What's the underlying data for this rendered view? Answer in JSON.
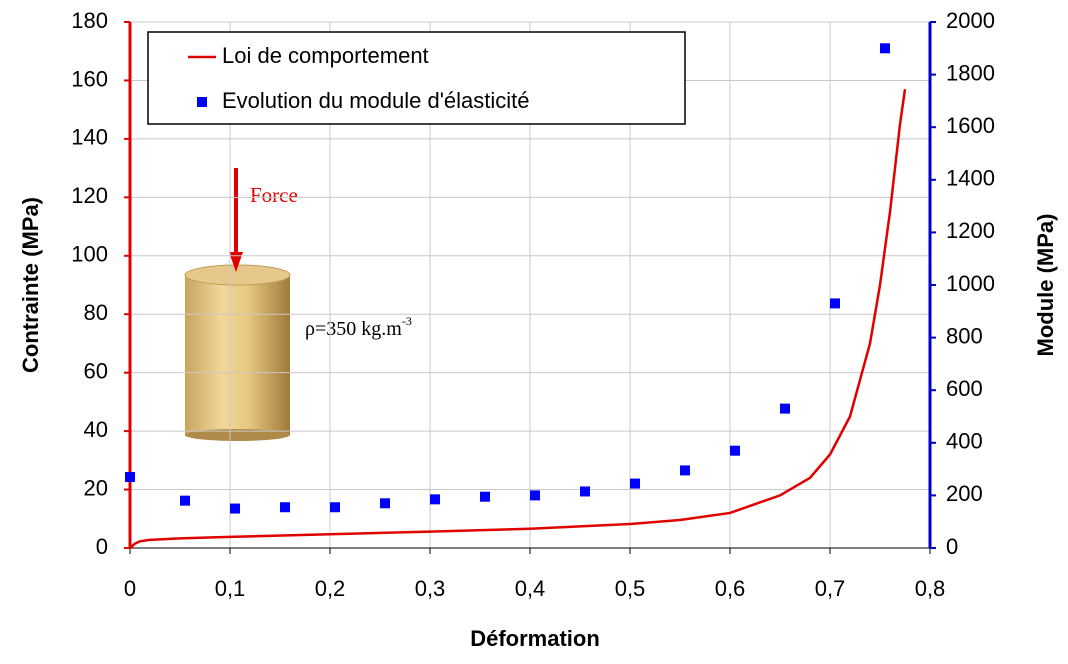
{
  "chart_data": {
    "type": "line",
    "xlabel": "Déformation",
    "ylabel": "Contrainte (MPa)",
    "y2label": "Module (MPa)",
    "annotations": {
      "force": "Force",
      "density": "ρ=350 kg.m",
      "density_exp": "-3"
    },
    "xlim": [
      0,
      0.8
    ],
    "xticks": [
      0,
      {
        "value": 0.1,
        "label": "0,1"
      },
      {
        "value": 0.2,
        "label": "0,2"
      },
      {
        "value": 0.3,
        "label": "0,3"
      },
      {
        "value": 0.4,
        "label": "0,4"
      },
      {
        "value": 0.5,
        "label": "0,5"
      },
      {
        "value": 0.6,
        "label": "0,6"
      },
      {
        "value": 0.7,
        "label": "0,7"
      },
      {
        "value": 0.8,
        "label": "0,8"
      }
    ],
    "ylim": [
      0,
      180
    ],
    "yticks": [
      0,
      20,
      40,
      60,
      80,
      100,
      120,
      140,
      160,
      180
    ],
    "y2lim": [
      0,
      2000
    ],
    "y2ticks": [
      0,
      200,
      400,
      600,
      800,
      1000,
      1200,
      1400,
      1600,
      1800,
      2000
    ],
    "y_axis_color": "#e00000",
    "y2_axis_color": "#0000c8",
    "grid": true,
    "legend": "top-left",
    "series": [
      {
        "name": "Loi de comportement",
        "type": "line",
        "color": "#e00000",
        "x": [
          0,
          0.005,
          0.01,
          0.02,
          0.05,
          0.1,
          0.2,
          0.3,
          0.4,
          0.5,
          0.55,
          0.6,
          0.65,
          0.68,
          0.7,
          0.72,
          0.74,
          0.75,
          0.76,
          0.77,
          0.775
        ],
        "values": [
          0,
          1.5,
          2.3,
          2.8,
          3.3,
          3.8,
          4.7,
          5.6,
          6.6,
          8.2,
          9.6,
          12,
          18,
          24,
          32,
          45,
          70,
          90,
          115,
          145,
          157
        ]
      },
      {
        "name": "Evolution du module d'élasticité",
        "type": "scatter",
        "color": "#0000ff",
        "axis": "y2",
        "x": [
          0,
          0.055,
          0.105,
          0.155,
          0.205,
          0.255,
          0.305,
          0.355,
          0.405,
          0.455,
          0.505,
          0.555,
          0.605,
          0.655,
          0.705,
          0.755
        ],
        "values": [
          270,
          180,
          150,
          155,
          155,
          170,
          185,
          195,
          200,
          215,
          245,
          295,
          370,
          530,
          930,
          1900
        ]
      }
    ]
  }
}
